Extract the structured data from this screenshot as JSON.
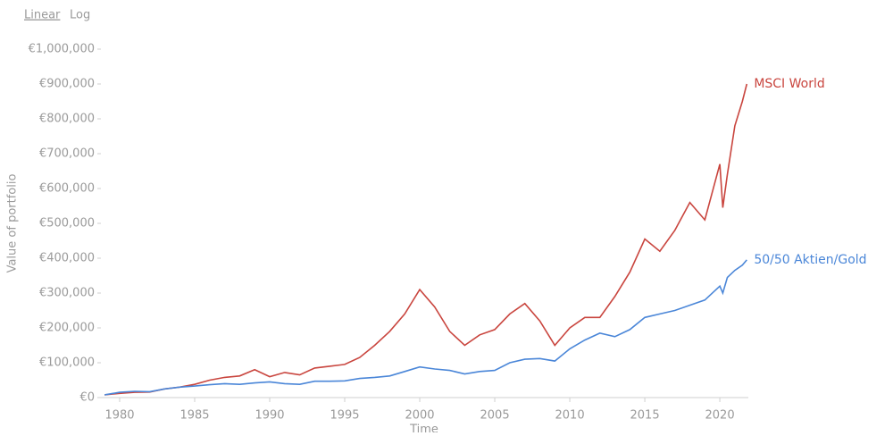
{
  "chart_data": {
    "type": "line",
    "scale_options": [
      "Linear",
      "Log"
    ],
    "log_scale": false,
    "xlabel": "Time",
    "ylabel": "Value of portfolio",
    "x": [
      1979,
      1980,
      1981,
      1982,
      1983,
      1984,
      1985,
      1986,
      1987,
      1988,
      1989,
      1990,
      1991,
      1992,
      1993,
      1994,
      1995,
      1996,
      1997,
      1998,
      1999,
      2000,
      2001,
      2002,
      2003,
      2004,
      2005,
      2006,
      2007,
      2008,
      2009,
      2010,
      2011,
      2012,
      2013,
      2014,
      2015,
      2016,
      2017,
      2018,
      2019,
      2020,
      2020.2,
      2020.5,
      2021,
      2021.5,
      2021.8
    ],
    "series": [
      {
        "name": "MSCI World",
        "color": "#c9453e",
        "values": [
          8000,
          12000,
          15000,
          16000,
          25000,
          30000,
          38000,
          50000,
          58000,
          62000,
          80000,
          60000,
          72000,
          65000,
          85000,
          90000,
          95000,
          115000,
          150000,
          190000,
          240000,
          310000,
          260000,
          190000,
          150000,
          180000,
          195000,
          240000,
          270000,
          220000,
          150000,
          200000,
          230000,
          230000,
          290000,
          360000,
          455000,
          420000,
          480000,
          560000,
          510000,
          670000,
          545000,
          640000,
          780000,
          850000,
          900000
        ]
      },
      {
        "name": "50/50 Aktien/Gold",
        "color": "#4a86d8",
        "values": [
          8000,
          15000,
          18000,
          17000,
          25000,
          30000,
          33000,
          37000,
          40000,
          38000,
          42000,
          45000,
          40000,
          38000,
          47000,
          47000,
          48000,
          55000,
          58000,
          62000,
          75000,
          88000,
          82000,
          78000,
          68000,
          75000,
          78000,
          100000,
          110000,
          112000,
          105000,
          140000,
          165000,
          185000,
          175000,
          195000,
          230000,
          240000,
          250000,
          265000,
          280000,
          320000,
          300000,
          345000,
          365000,
          380000,
          395000
        ]
      }
    ],
    "xlim": [
      1978.75,
      2021.9
    ],
    "xticks": [
      1980,
      1985,
      1990,
      1995,
      2000,
      2005,
      2010,
      2015,
      2020
    ],
    "ylim": [
      0,
      1000000
    ],
    "yticks": [
      {
        "value": 0,
        "label": "€0"
      },
      {
        "value": 100000,
        "label": "€100,000"
      },
      {
        "value": 200000,
        "label": "€200,000"
      },
      {
        "value": 300000,
        "label": "€300,000"
      },
      {
        "value": 400000,
        "label": "€400,000"
      },
      {
        "value": 500000,
        "label": "€500,000"
      },
      {
        "value": 600000,
        "label": "€600,000"
      },
      {
        "value": 700000,
        "label": "€700,000"
      },
      {
        "value": 800000,
        "label": "€800,000"
      },
      {
        "value": 900000,
        "label": "€900,000"
      },
      {
        "value": 1000000,
        "label": "€1,000,000"
      }
    ]
  }
}
